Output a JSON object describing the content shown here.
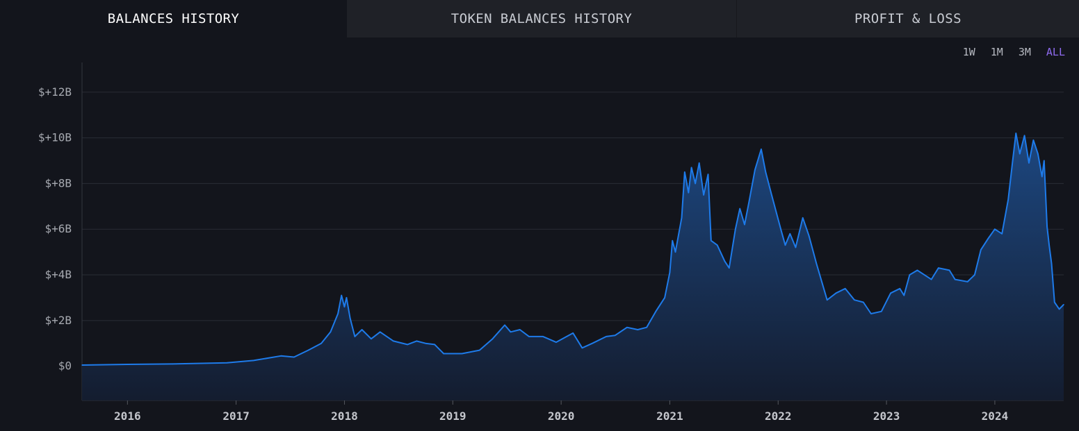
{
  "tabs": [
    {
      "label": "BALANCES HISTORY",
      "active": true
    },
    {
      "label": "TOKEN BALANCES HISTORY",
      "active": false
    },
    {
      "label": "PROFIT & LOSS",
      "active": false
    }
  ],
  "ranges": [
    {
      "label": "1W",
      "active": false
    },
    {
      "label": "1M",
      "active": false
    },
    {
      "label": "3M",
      "active": false
    },
    {
      "label": "ALL",
      "active": true
    }
  ],
  "colors": {
    "background": "#13151c",
    "line": "#1e7bea",
    "fill_top": "#1d4a86",
    "fill_bottom": "#141d30",
    "grid": "#2a2d35",
    "active_range": "#8f6bf0"
  },
  "chart_data": {
    "type": "area",
    "title": "",
    "xlabel": "",
    "ylabel": "",
    "ylim": [
      -1.5,
      13.3
    ],
    "xlim": [
      "2015-08-01",
      "2024-08-20"
    ],
    "y_ticks": [
      {
        "value": 0,
        "label": "$0"
      },
      {
        "value": 2,
        "label": "$+2B"
      },
      {
        "value": 4,
        "label": "$+4B"
      },
      {
        "value": 6,
        "label": "$+6B"
      },
      {
        "value": 8,
        "label": "$+8B"
      },
      {
        "value": 10,
        "label": "$+10B"
      },
      {
        "value": 12,
        "label": "$+12B"
      }
    ],
    "x_ticks": [
      {
        "date": "2016-01-01",
        "label": "2016"
      },
      {
        "date": "2017-01-01",
        "label": "2017"
      },
      {
        "date": "2018-01-01",
        "label": "2018"
      },
      {
        "date": "2019-01-01",
        "label": "2019"
      },
      {
        "date": "2020-01-01",
        "label": "2020"
      },
      {
        "date": "2021-01-01",
        "label": "2021"
      },
      {
        "date": "2022-01-01",
        "label": "2022"
      },
      {
        "date": "2023-01-01",
        "label": "2023"
      },
      {
        "date": "2024-01-01",
        "label": "2024"
      }
    ],
    "grid": true,
    "series": [
      {
        "points": [
          [
            "2015-08-01",
            0.05
          ],
          [
            "2016-01-01",
            0.08
          ],
          [
            "2016-06-01",
            0.1
          ],
          [
            "2016-12-01",
            0.15
          ],
          [
            "2017-03-01",
            0.25
          ],
          [
            "2017-06-01",
            0.45
          ],
          [
            "2017-07-15",
            0.4
          ],
          [
            "2017-09-01",
            0.7
          ],
          [
            "2017-10-15",
            1.0
          ],
          [
            "2017-11-15",
            1.5
          ],
          [
            "2017-12-10",
            2.3
          ],
          [
            "2017-12-22",
            3.1
          ],
          [
            "2018-01-01",
            2.6
          ],
          [
            "2018-01-08",
            3.0
          ],
          [
            "2018-01-20",
            2.1
          ],
          [
            "2018-02-05",
            1.3
          ],
          [
            "2018-03-01",
            1.6
          ],
          [
            "2018-04-01",
            1.2
          ],
          [
            "2018-05-01",
            1.5
          ],
          [
            "2018-06-15",
            1.1
          ],
          [
            "2018-08-01",
            0.95
          ],
          [
            "2018-09-01",
            1.1
          ],
          [
            "2018-10-01",
            1.0
          ],
          [
            "2018-11-01",
            0.95
          ],
          [
            "2018-12-01",
            0.55
          ],
          [
            "2019-02-01",
            0.55
          ],
          [
            "2019-04-01",
            0.7
          ],
          [
            "2019-05-15",
            1.2
          ],
          [
            "2019-06-25",
            1.8
          ],
          [
            "2019-07-15",
            1.5
          ],
          [
            "2019-08-15",
            1.6
          ],
          [
            "2019-09-15",
            1.3
          ],
          [
            "2019-11-01",
            1.3
          ],
          [
            "2019-12-15",
            1.05
          ],
          [
            "2020-02-10",
            1.45
          ],
          [
            "2020-03-12",
            0.8
          ],
          [
            "2020-04-15",
            1.0
          ],
          [
            "2020-06-01",
            1.3
          ],
          [
            "2020-07-01",
            1.35
          ],
          [
            "2020-08-10",
            1.7
          ],
          [
            "2020-09-15",
            1.6
          ],
          [
            "2020-10-15",
            1.7
          ],
          [
            "2020-11-15",
            2.4
          ],
          [
            "2020-12-15",
            3.0
          ],
          [
            "2021-01-01",
            4.1
          ],
          [
            "2021-01-10",
            5.5
          ],
          [
            "2021-01-20",
            5.0
          ],
          [
            "2021-02-10",
            6.5
          ],
          [
            "2021-02-20",
            8.5
          ],
          [
            "2021-03-05",
            7.6
          ],
          [
            "2021-03-15",
            8.7
          ],
          [
            "2021-03-28",
            8.0
          ],
          [
            "2021-04-10",
            8.9
          ],
          [
            "2021-04-25",
            7.5
          ],
          [
            "2021-05-10",
            8.4
          ],
          [
            "2021-05-20",
            5.5
          ],
          [
            "2021-06-10",
            5.3
          ],
          [
            "2021-07-05",
            4.6
          ],
          [
            "2021-07-20",
            4.3
          ],
          [
            "2021-08-10",
            6.0
          ],
          [
            "2021-08-25",
            6.9
          ],
          [
            "2021-09-10",
            6.2
          ],
          [
            "2021-09-25",
            7.2
          ],
          [
            "2021-10-15",
            8.6
          ],
          [
            "2021-11-05",
            9.5
          ],
          [
            "2021-11-20",
            8.5
          ],
          [
            "2021-12-10",
            7.5
          ],
          [
            "2022-01-10",
            6.0
          ],
          [
            "2022-01-25",
            5.3
          ],
          [
            "2022-02-10",
            5.8
          ],
          [
            "2022-03-01",
            5.2
          ],
          [
            "2022-03-25",
            6.5
          ],
          [
            "2022-04-15",
            5.7
          ],
          [
            "2022-05-10",
            4.5
          ],
          [
            "2022-06-15",
            2.9
          ],
          [
            "2022-07-15",
            3.2
          ],
          [
            "2022-08-15",
            3.4
          ],
          [
            "2022-09-15",
            2.9
          ],
          [
            "2022-10-15",
            2.8
          ],
          [
            "2022-11-10",
            2.3
          ],
          [
            "2022-12-15",
            2.4
          ],
          [
            "2023-01-15",
            3.2
          ],
          [
            "2023-02-15",
            3.4
          ],
          [
            "2023-03-01",
            3.1
          ],
          [
            "2023-03-20",
            4.0
          ],
          [
            "2023-04-15",
            4.2
          ],
          [
            "2023-06-01",
            3.8
          ],
          [
            "2023-06-25",
            4.3
          ],
          [
            "2023-08-01",
            4.2
          ],
          [
            "2023-08-20",
            3.8
          ],
          [
            "2023-10-01",
            3.7
          ],
          [
            "2023-10-25",
            4.0
          ],
          [
            "2023-11-15",
            5.1
          ],
          [
            "2023-12-10",
            5.6
          ],
          [
            "2024-01-01",
            6.0
          ],
          [
            "2024-01-25",
            5.8
          ],
          [
            "2024-02-15",
            7.3
          ],
          [
            "2024-03-01",
            9.0
          ],
          [
            "2024-03-12",
            10.2
          ],
          [
            "2024-03-25",
            9.3
          ],
          [
            "2024-04-10",
            10.1
          ],
          [
            "2024-04-25",
            8.9
          ],
          [
            "2024-05-10",
            9.9
          ],
          [
            "2024-05-25",
            9.3
          ],
          [
            "2024-06-08",
            8.3
          ],
          [
            "2024-06-15",
            9.0
          ],
          [
            "2024-06-25",
            6.1
          ],
          [
            "2024-07-02",
            5.3
          ],
          [
            "2024-07-10",
            4.5
          ],
          [
            "2024-07-20",
            2.8
          ],
          [
            "2024-08-05",
            2.5
          ],
          [
            "2024-08-20",
            2.7
          ]
        ]
      }
    ]
  }
}
